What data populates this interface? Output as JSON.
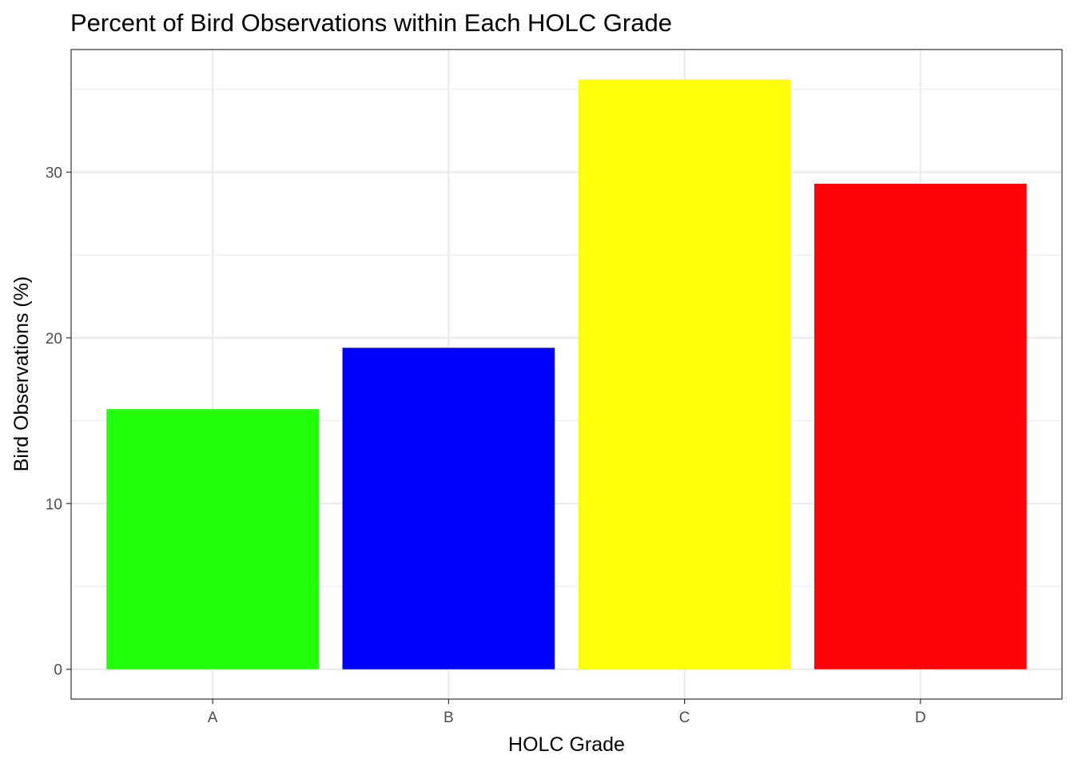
{
  "chart_data": {
    "type": "bar",
    "title": "Percent of Bird Observations within Each HOLC Grade",
    "xlabel": "HOLC Grade",
    "ylabel": "Bird Observations (%)",
    "categories": [
      "A",
      "B",
      "C",
      "D"
    ],
    "values": [
      15.7,
      19.4,
      35.6,
      29.3
    ],
    "colors": [
      "#22ff0a",
      "#0000ff",
      "#ffff0a",
      "#ff0309"
    ],
    "ylim": [
      -1.8,
      37.4
    ],
    "yticks": [
      0,
      10,
      20,
      30
    ],
    "ytick_labels": [
      "0",
      "10",
      "20",
      "30"
    ],
    "grid": true,
    "legend": "none",
    "theme": "bw"
  }
}
